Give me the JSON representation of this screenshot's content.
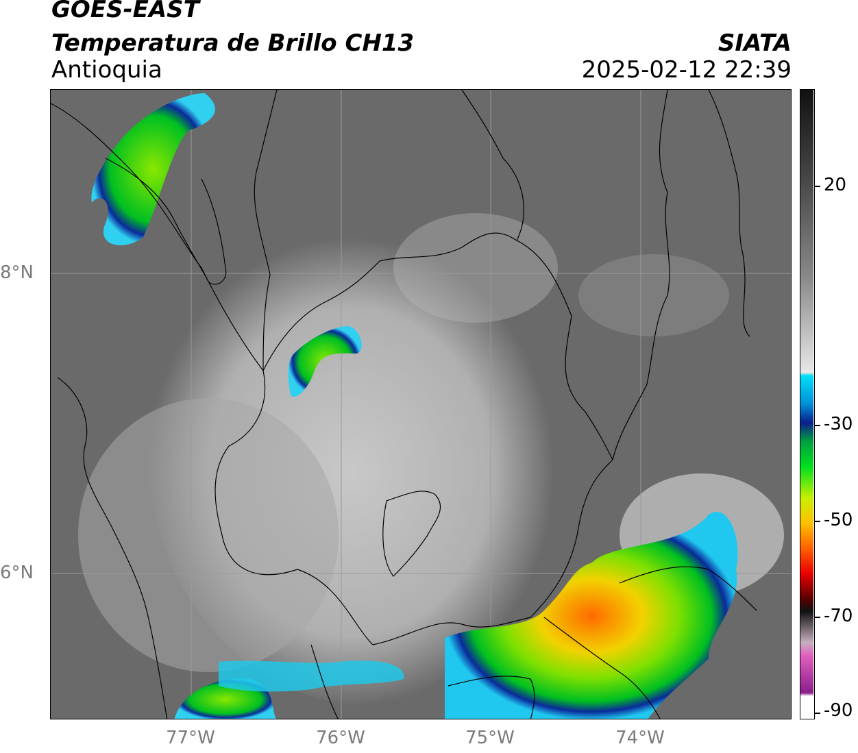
{
  "header": {
    "satellite": "GOES-EAST",
    "product": "Temperatura de Brillo CH13",
    "region": "Antioquia",
    "agency": "SIATA",
    "datetime": "2025-02-12 22:39"
  },
  "axes": {
    "lat_labels": [
      "8°N",
      "6°N"
    ],
    "lon_labels": [
      "77°W",
      "76°W",
      "75°W",
      "74°W"
    ]
  },
  "colorbar": {
    "tick_labels": [
      "20",
      "-30",
      "-50",
      "-70",
      "-90"
    ],
    "colors": {
      "warm_black": "#111111",
      "mid_gray": "#808080",
      "white": "#f5f5f5",
      "cyan": "#00d8f0",
      "dark_blue": "#0a1f8c",
      "green": "#00cc22",
      "yellow": "#f2f200",
      "orange": "#ff8a00",
      "red": "#e80000",
      "dark_red": "#5a0000",
      "magenta": "#d040b0",
      "purple": "#8a1f8a"
    }
  },
  "map_colors": {
    "background_dark": "#5f5f5f",
    "background_mid": "#8a8a8a",
    "background_light": "#c2c2c2",
    "border": "#000000",
    "grid": "#9a9a9a"
  }
}
